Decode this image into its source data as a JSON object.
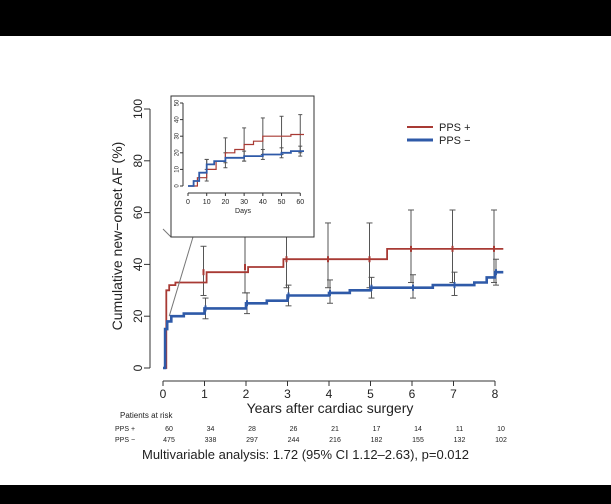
{
  "colors": {
    "pps_plus": "#a83a34",
    "pps_minus": "#2f5aa8",
    "axis": "#333333",
    "error": "#555555"
  },
  "risk_table": {
    "header": "Patients at risk",
    "rows": [
      {
        "label": "PPS +",
        "values": [
          "60",
          "34",
          "28",
          "26",
          "21",
          "17",
          "14",
          "11",
          "10"
        ]
      },
      {
        "label": "PPS −",
        "values": [
          "475",
          "338",
          "297",
          "244",
          "216",
          "182",
          "155",
          "132",
          "102"
        ]
      }
    ]
  },
  "footnote": "Multivariable analysis: 1.72 (95% CI 1.12–2.63), p=0.012",
  "chart_data": [
    {
      "type": "line",
      "subtype": "kaplan-meier-step",
      "title": "",
      "xlabel": "Years after cardiac surgery",
      "ylabel": "Cumulative new−onset AF (%)",
      "xlim": [
        0,
        8.2
      ],
      "ylim": [
        0,
        100
      ],
      "xticks": [
        0,
        1,
        2,
        3,
        4,
        5,
        6,
        7,
        8
      ],
      "yticks": [
        0,
        20,
        40,
        60,
        80,
        100
      ],
      "legend": {
        "position": "top-right",
        "entries": [
          "PPS +",
          "PPS −"
        ]
      },
      "series": [
        {
          "name": "PPS +",
          "x": [
            0,
            0.08,
            0.15,
            0.3,
            1.05,
            2.05,
            2.9,
            5.4,
            8.2
          ],
          "y": [
            0,
            30,
            32,
            33,
            37,
            39,
            42,
            46,
            46
          ],
          "error_bars": [
            {
              "x": 1,
              "y": 37,
              "lo": 28,
              "hi": 47
            },
            {
              "x": 2,
              "y": 39,
              "lo": 29,
              "hi": 53
            },
            {
              "x": 3,
              "y": 42,
              "lo": 31,
              "hi": 56
            },
            {
              "x": 4,
              "y": 42,
              "lo": 31,
              "hi": 56
            },
            {
              "x": 5,
              "y": 42,
              "lo": 31,
              "hi": 56
            },
            {
              "x": 6,
              "y": 46,
              "lo": 33,
              "hi": 61
            },
            {
              "x": 7,
              "y": 46,
              "lo": 33,
              "hi": 61
            },
            {
              "x": 8,
              "y": 46,
              "lo": 33,
              "hi": 61
            }
          ]
        },
        {
          "name": "PPS −",
          "x": [
            0,
            0.05,
            0.1,
            0.2,
            0.5,
            1.0,
            1.5,
            2.0,
            2.5,
            3.0,
            3.5,
            4.0,
            4.5,
            5.0,
            5.5,
            6.0,
            6.5,
            7.0,
            7.5,
            7.8,
            8.0,
            8.2
          ],
          "y": [
            0,
            15,
            18,
            20,
            21,
            23,
            23,
            25,
            26,
            28,
            28,
            29,
            30,
            31,
            31,
            31,
            32,
            32,
            33,
            35,
            37,
            37
          ],
          "error_bars": [
            {
              "x": 1,
              "y": 23,
              "lo": 19,
              "hi": 27
            },
            {
              "x": 2,
              "y": 25,
              "lo": 21,
              "hi": 29
            },
            {
              "x": 3,
              "y": 28,
              "lo": 24,
              "hi": 32
            },
            {
              "x": 4,
              "y": 29,
              "lo": 25,
              "hi": 34
            },
            {
              "x": 5,
              "y": 31,
              "lo": 27,
              "hi": 35
            },
            {
              "x": 6,
              "y": 31,
              "lo": 27,
              "hi": 36
            },
            {
              "x": 7,
              "y": 32,
              "lo": 28,
              "hi": 37
            },
            {
              "x": 8,
              "y": 37,
              "lo": 32,
              "hi": 42
            }
          ]
        }
      ]
    },
    {
      "type": "line",
      "subtype": "kaplan-meier-step-inset",
      "title": "",
      "xlabel": "Days",
      "ylabel": "",
      "xlim": [
        0,
        62
      ],
      "ylim": [
        0,
        50
      ],
      "xticks": [
        0,
        10,
        20,
        30,
        40,
        50,
        60
      ],
      "yticks": [
        0,
        10,
        20,
        30,
        40,
        50
      ],
      "series": [
        {
          "name": "PPS +",
          "x": [
            0,
            5,
            10,
            15,
            20,
            25,
            30,
            35,
            40,
            50,
            55,
            62
          ],
          "y": [
            0,
            5,
            10,
            15,
            20,
            22,
            25,
            27,
            30,
            30,
            31,
            31
          ],
          "error_bars": [
            {
              "x": 10,
              "y": 10,
              "lo": 3,
              "hi": 16
            },
            {
              "x": 20,
              "y": 20,
              "lo": 11,
              "hi": 29
            },
            {
              "x": 30,
              "y": 25,
              "lo": 15,
              "hi": 35
            },
            {
              "x": 40,
              "y": 30,
              "lo": 19,
              "hi": 41
            },
            {
              "x": 50,
              "y": 30,
              "lo": 19,
              "hi": 42
            },
            {
              "x": 60,
              "y": 31,
              "lo": 20,
              "hi": 43
            }
          ]
        },
        {
          "name": "PPS −",
          "x": [
            0,
            3,
            6,
            10,
            14,
            20,
            25,
            30,
            40,
            50,
            55,
            62
          ],
          "y": [
            0,
            3,
            8,
            13,
            15,
            17,
            17,
            18,
            19,
            20,
            21,
            21
          ],
          "error_bars": [
            {
              "x": 10,
              "y": 13,
              "lo": 10,
              "hi": 16
            },
            {
              "x": 20,
              "y": 17,
              "lo": 14,
              "hi": 20
            },
            {
              "x": 30,
              "y": 18,
              "lo": 15,
              "hi": 21
            },
            {
              "x": 40,
              "y": 19,
              "lo": 16,
              "hi": 22
            },
            {
              "x": 50,
              "y": 20,
              "lo": 17,
              "hi": 23
            },
            {
              "x": 60,
              "y": 21,
              "lo": 18,
              "hi": 24
            }
          ]
        }
      ]
    }
  ]
}
